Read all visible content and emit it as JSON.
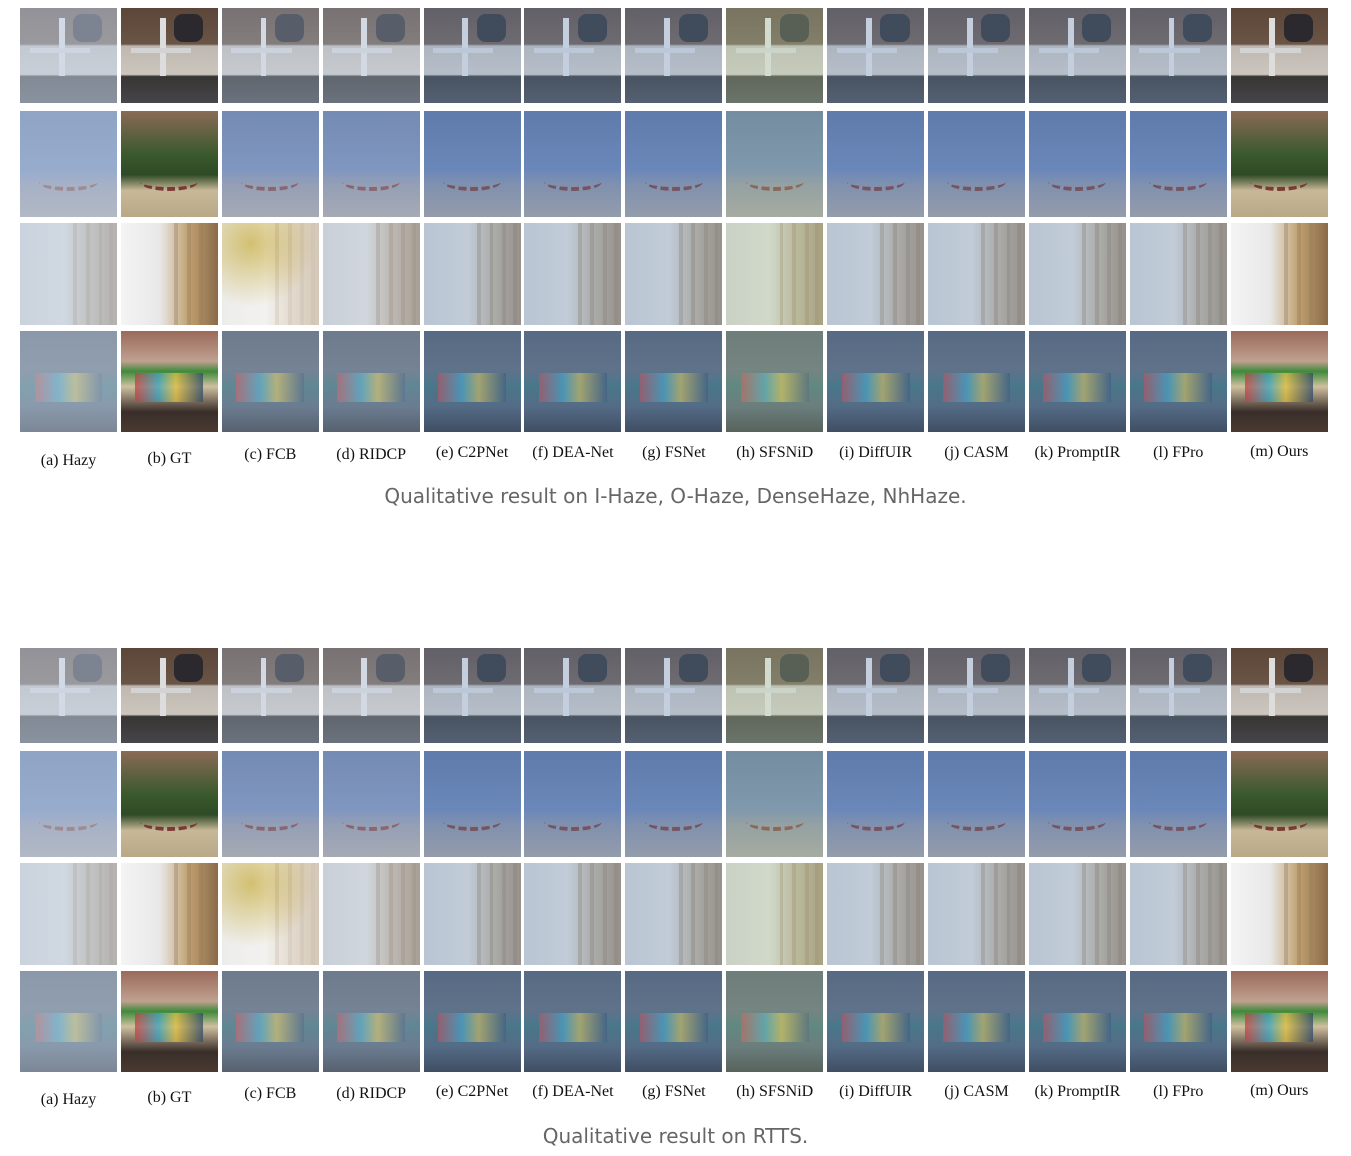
{
  "labels": [
    "(a) Hazy",
    "(b) GT",
    "(c) FCB",
    "(d) RIDCP",
    "(e) C2PNet",
    "(f) DEA-Net",
    "(g) FSNet",
    "(h) SFSNiD",
    "(i) DiffUIR",
    "(j) CASM",
    "(k) PromptIR",
    "(l) FPro",
    "(m) Ours"
  ],
  "figures": [
    {
      "caption": "Qualitative result on I-Haze, O-Haze, DenseHaze, NhHaze."
    },
    {
      "caption": "Qualitative result on RTTS."
    }
  ]
}
